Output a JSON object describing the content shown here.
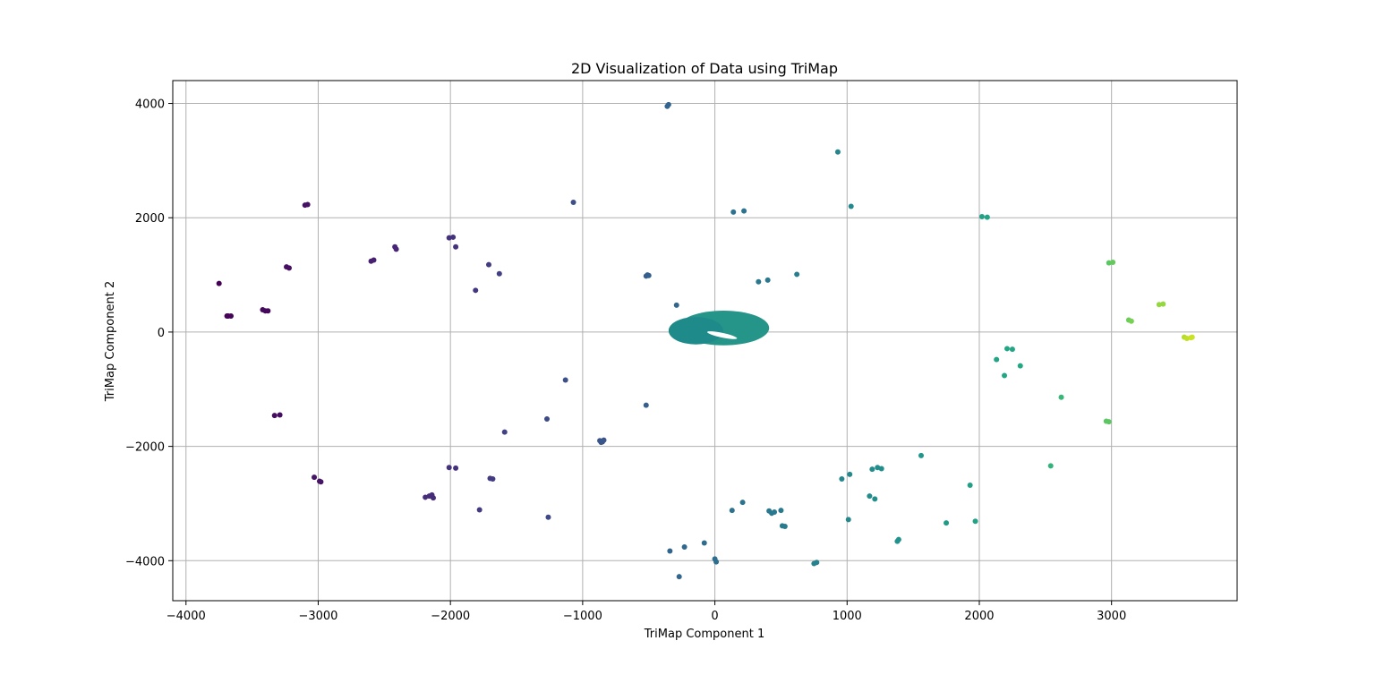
{
  "chart_data": {
    "type": "scatter",
    "title": "2D Visualization of Data using TriMap",
    "xlabel": "TriMap Component 1",
    "ylabel": "TriMap Component 2",
    "xlim": [
      -4100,
      3950
    ],
    "ylim": [
      -4700,
      4400
    ],
    "xticks": [
      -4000,
      -3000,
      -2000,
      -1000,
      0,
      1000,
      2000,
      3000
    ],
    "yticks": [
      -4000,
      -2000,
      0,
      2000,
      4000
    ],
    "grid": true,
    "colormap": "viridis",
    "central_cluster": {
      "color": "#25958a",
      "center": [
        0,
        50
      ],
      "x_extent": [
        -350,
        400
      ],
      "y_extent": [
        -280,
        360
      ],
      "hole": {
        "x_extent": [
          -60,
          170
        ],
        "y_extent": [
          -130,
          20
        ]
      }
    },
    "points": [
      {
        "x": -3750,
        "y": 850,
        "v": 0.0
      },
      {
        "x": -3690,
        "y": 280,
        "v": 0.0
      },
      {
        "x": -3680,
        "y": 280,
        "v": 0.01
      },
      {
        "x": -3660,
        "y": 280,
        "v": 0.01
      },
      {
        "x": -3420,
        "y": 390,
        "v": 0.03
      },
      {
        "x": -3400,
        "y": 370,
        "v": 0.03
      },
      {
        "x": -3380,
        "y": 370,
        "v": 0.03
      },
      {
        "x": -3330,
        "y": -1460,
        "v": 0.04
      },
      {
        "x": -3290,
        "y": -1450,
        "v": 0.04
      },
      {
        "x": -3240,
        "y": 1140,
        "v": 0.05
      },
      {
        "x": -3220,
        "y": 1120,
        "v": 0.05
      },
      {
        "x": -3100,
        "y": 2220,
        "v": 0.06
      },
      {
        "x": -3080,
        "y": 2230,
        "v": 0.06
      },
      {
        "x": -3030,
        "y": -2540,
        "v": 0.07
      },
      {
        "x": -2990,
        "y": -2610,
        "v": 0.07
      },
      {
        "x": -2980,
        "y": -2620,
        "v": 0.07
      },
      {
        "x": -2600,
        "y": 1240,
        "v": 0.11
      },
      {
        "x": -2580,
        "y": 1260,
        "v": 0.11
      },
      {
        "x": -2420,
        "y": 1490,
        "v": 0.13
      },
      {
        "x": -2410,
        "y": 1450,
        "v": 0.13
      },
      {
        "x": -2190,
        "y": -2890,
        "v": 0.16
      },
      {
        "x": -2160,
        "y": -2870,
        "v": 0.16
      },
      {
        "x": -2140,
        "y": -2850,
        "v": 0.16
      },
      {
        "x": -2130,
        "y": -2900,
        "v": 0.16
      },
      {
        "x": -2010,
        "y": 1650,
        "v": 0.18
      },
      {
        "x": -2010,
        "y": -2370,
        "v": 0.18
      },
      {
        "x": -1980,
        "y": 1660,
        "v": 0.18
      },
      {
        "x": -1960,
        "y": 1490,
        "v": 0.18
      },
      {
        "x": -1960,
        "y": -2380,
        "v": 0.18
      },
      {
        "x": -1810,
        "y": 730,
        "v": 0.2
      },
      {
        "x": -1780,
        "y": -3110,
        "v": 0.21
      },
      {
        "x": -1710,
        "y": 1180,
        "v": 0.22
      },
      {
        "x": -1700,
        "y": -2560,
        "v": 0.22
      },
      {
        "x": -1680,
        "y": -2570,
        "v": 0.22
      },
      {
        "x": -1630,
        "y": 1020,
        "v": 0.23
      },
      {
        "x": -1590,
        "y": -1750,
        "v": 0.24
      },
      {
        "x": -1270,
        "y": -1520,
        "v": 0.28
      },
      {
        "x": -1260,
        "y": -3240,
        "v": 0.28
      },
      {
        "x": -1130,
        "y": -840,
        "v": 0.3
      },
      {
        "x": -1070,
        "y": 2270,
        "v": 0.3
      },
      {
        "x": -870,
        "y": -1900,
        "v": 0.33
      },
      {
        "x": -860,
        "y": -1930,
        "v": 0.33
      },
      {
        "x": -850,
        "y": -1920,
        "v": 0.33
      },
      {
        "x": -840,
        "y": -1890,
        "v": 0.33
      },
      {
        "x": -520,
        "y": 980,
        "v": 0.38
      },
      {
        "x": -510,
        "y": 1000,
        "v": 0.38
      },
      {
        "x": -500,
        "y": 990,
        "v": 0.38
      },
      {
        "x": -520,
        "y": -1280,
        "v": 0.38
      },
      {
        "x": -360,
        "y": 3950,
        "v": 0.4
      },
      {
        "x": -350,
        "y": 3980,
        "v": 0.4
      },
      {
        "x": -340,
        "y": -3830,
        "v": 0.4
      },
      {
        "x": -290,
        "y": 470,
        "v": 0.41
      },
      {
        "x": -270,
        "y": -4280,
        "v": 0.41
      },
      {
        "x": -230,
        "y": -3760,
        "v": 0.42
      },
      {
        "x": -80,
        "y": -3690,
        "v": 0.44
      },
      {
        "x": 0,
        "y": -3970,
        "v": 0.45
      },
      {
        "x": 10,
        "y": -4020,
        "v": 0.45
      },
      {
        "x": 130,
        "y": -3120,
        "v": 0.47
      },
      {
        "x": 140,
        "y": 2100,
        "v": 0.47
      },
      {
        "x": 210,
        "y": -2980,
        "v": 0.48
      },
      {
        "x": 220,
        "y": 2120,
        "v": 0.48
      },
      {
        "x": 330,
        "y": 880,
        "v": 0.5
      },
      {
        "x": 400,
        "y": 910,
        "v": 0.5
      },
      {
        "x": 410,
        "y": -3130,
        "v": 0.5
      },
      {
        "x": 430,
        "y": -3170,
        "v": 0.5
      },
      {
        "x": 450,
        "y": -3150,
        "v": 0.51
      },
      {
        "x": 500,
        "y": -3120,
        "v": 0.51
      },
      {
        "x": 510,
        "y": -3390,
        "v": 0.51
      },
      {
        "x": 530,
        "y": -3400,
        "v": 0.52
      },
      {
        "x": 620,
        "y": 1010,
        "v": 0.53
      },
      {
        "x": 750,
        "y": -4050,
        "v": 0.55
      },
      {
        "x": 770,
        "y": -4030,
        "v": 0.55
      },
      {
        "x": 930,
        "y": 3150,
        "v": 0.57
      },
      {
        "x": 960,
        "y": -2570,
        "v": 0.57
      },
      {
        "x": 1010,
        "y": -3280,
        "v": 0.58
      },
      {
        "x": 1020,
        "y": -2490,
        "v": 0.58
      },
      {
        "x": 1030,
        "y": 2200,
        "v": 0.58
      },
      {
        "x": 1170,
        "y": -2870,
        "v": 0.6
      },
      {
        "x": 1190,
        "y": -2400,
        "v": 0.6
      },
      {
        "x": 1210,
        "y": -2920,
        "v": 0.61
      },
      {
        "x": 1230,
        "y": -2370,
        "v": 0.61
      },
      {
        "x": 1260,
        "y": -2390,
        "v": 0.61
      },
      {
        "x": 1380,
        "y": -3660,
        "v": 0.63
      },
      {
        "x": 1390,
        "y": -3630,
        "v": 0.63
      },
      {
        "x": 1560,
        "y": -2160,
        "v": 0.65
      },
      {
        "x": 1750,
        "y": -3340,
        "v": 0.68
      },
      {
        "x": 1930,
        "y": -2680,
        "v": 0.7
      },
      {
        "x": 1970,
        "y": -3310,
        "v": 0.71
      },
      {
        "x": 2020,
        "y": 2020,
        "v": 0.71
      },
      {
        "x": 2060,
        "y": 2010,
        "v": 0.72
      },
      {
        "x": 2130,
        "y": -480,
        "v": 0.73
      },
      {
        "x": 2190,
        "y": -760,
        "v": 0.74
      },
      {
        "x": 2210,
        "y": -290,
        "v": 0.74
      },
      {
        "x": 2250,
        "y": -300,
        "v": 0.74
      },
      {
        "x": 2310,
        "y": -590,
        "v": 0.75
      },
      {
        "x": 2540,
        "y": -2340,
        "v": 0.78
      },
      {
        "x": 2620,
        "y": -1140,
        "v": 0.79
      },
      {
        "x": 2960,
        "y": -1560,
        "v": 0.84
      },
      {
        "x": 2980,
        "y": -1570,
        "v": 0.84
      },
      {
        "x": 2980,
        "y": 1210,
        "v": 0.84
      },
      {
        "x": 3010,
        "y": 1220,
        "v": 0.85
      },
      {
        "x": 3130,
        "y": 210,
        "v": 0.86
      },
      {
        "x": 3150,
        "y": 190,
        "v": 0.87
      },
      {
        "x": 3360,
        "y": 480,
        "v": 0.9
      },
      {
        "x": 3390,
        "y": 490,
        "v": 0.9
      },
      {
        "x": 3550,
        "y": -90,
        "v": 0.93
      },
      {
        "x": 3570,
        "y": -110,
        "v": 0.94
      },
      {
        "x": 3610,
        "y": -90,
        "v": 0.95
      },
      {
        "x": 3600,
        "y": -100,
        "v": 0.95
      }
    ]
  }
}
